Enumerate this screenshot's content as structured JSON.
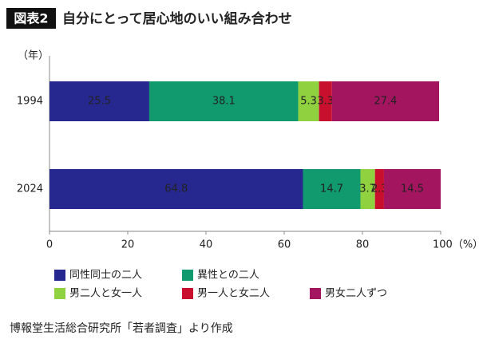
{
  "chart_data": {
    "type": "stacked-barh",
    "badge": "図表2",
    "title": "自分にとって居心地のいい組み合わせ",
    "ylabel": "（年）",
    "categories": [
      "1994",
      "2024"
    ],
    "series": [
      {
        "name": "同性同士の二人",
        "color": "#27288f",
        "values": [
          25.5,
          64.8
        ]
      },
      {
        "name": "異性との二人",
        "color": "#109a6d",
        "values": [
          38.1,
          14.7
        ]
      },
      {
        "name": "男二人と女一人",
        "color": "#8fd13f",
        "values": [
          5.3,
          3.7
        ]
      },
      {
        "name": "男一人と女二人",
        "color": "#c8102e",
        "values": [
          3.3,
          2.3
        ]
      },
      {
        "name": "男女二人ずつ",
        "color": "#a3155f",
        "values": [
          27.4,
          14.5
        ]
      }
    ],
    "xlim": [
      0,
      100
    ],
    "xticks": [
      0,
      20,
      40,
      60,
      80,
      {
        "value": 100,
        "label": "100（%）"
      }
    ],
    "source": "博報堂生活総合研究所「若者調査」より作成"
  }
}
